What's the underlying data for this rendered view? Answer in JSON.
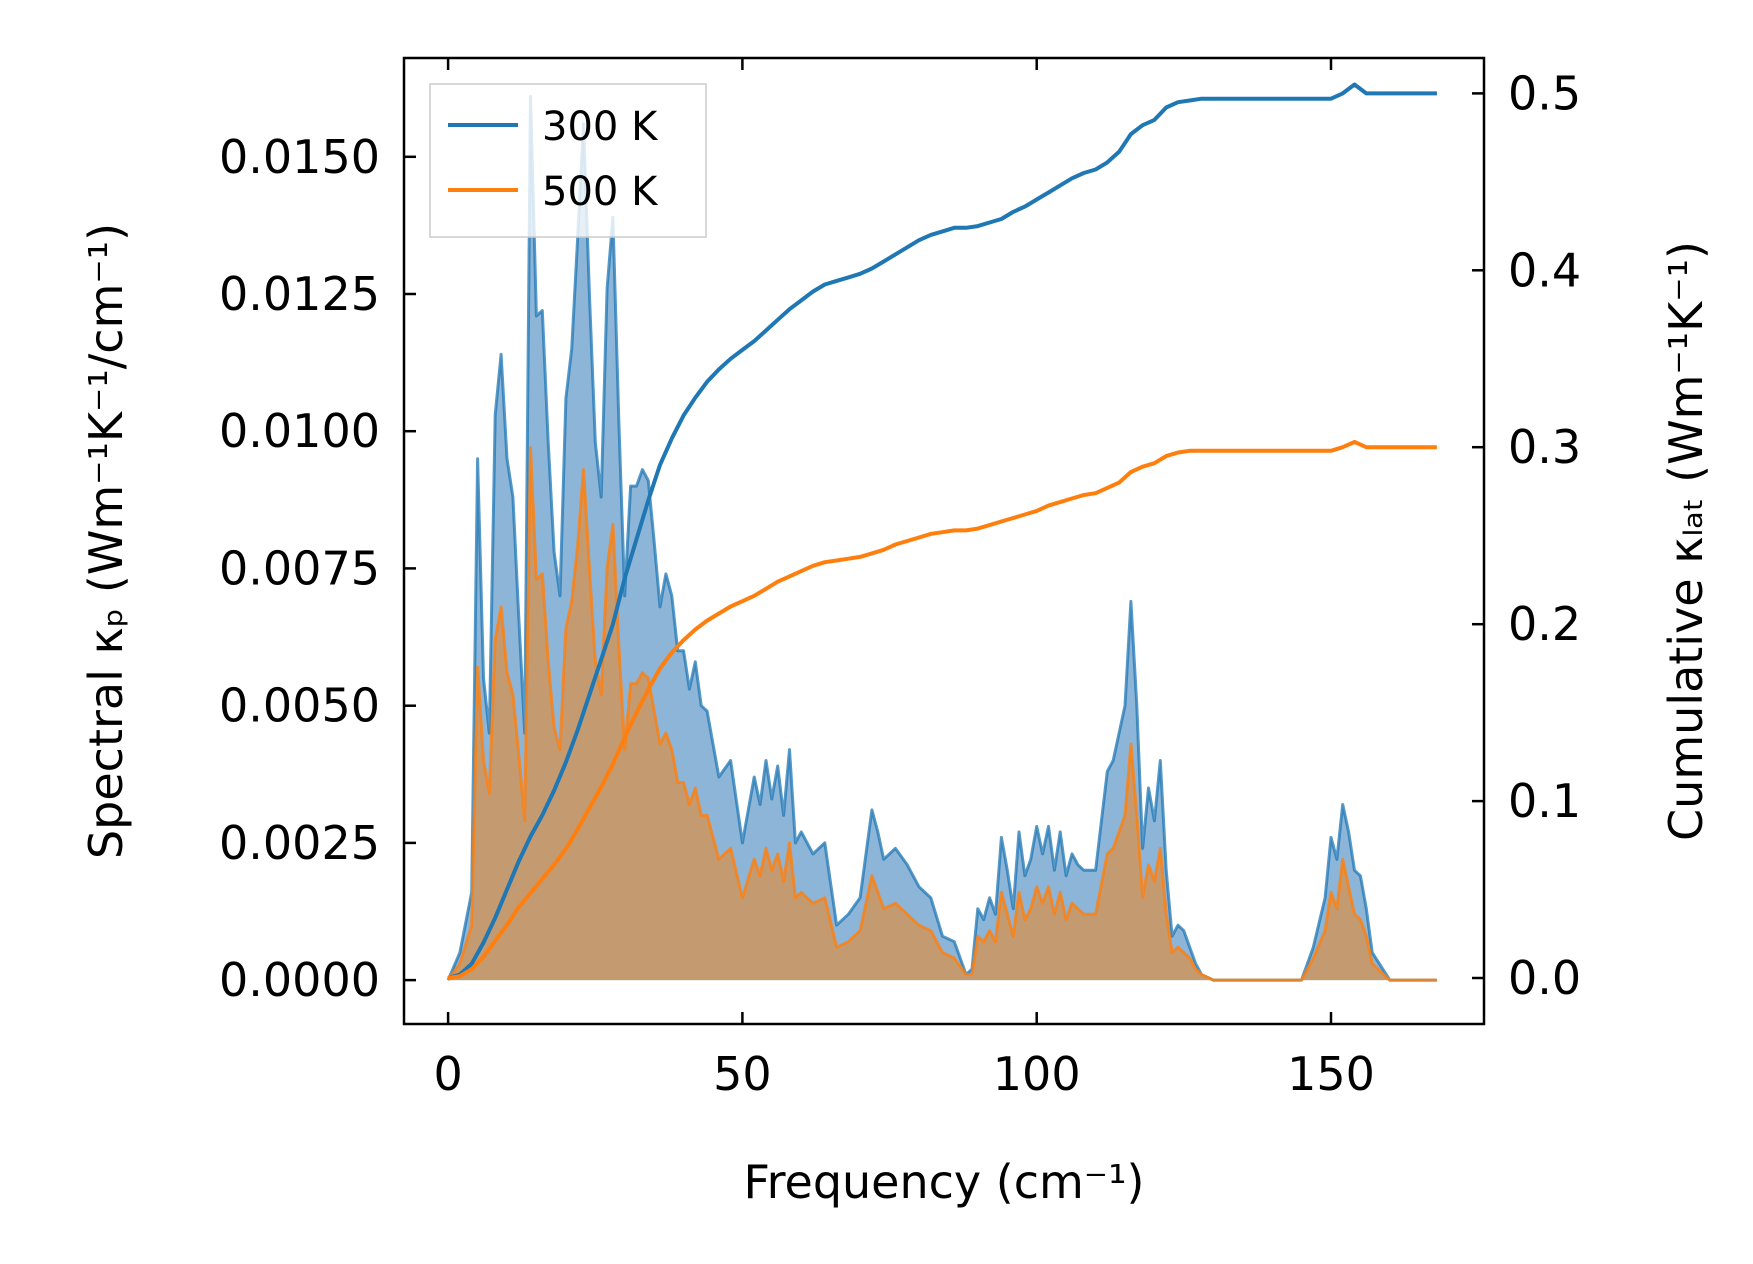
{
  "chart_data": {
    "type": "area",
    "xlabel": "Frequency (cm⁻¹)",
    "ylabel_left": "Spectral κₚ (Wm⁻¹K⁻¹/cm⁻¹)",
    "ylabel_right": "Cumulative κₗₐₜ (Wm⁻¹K⁻¹)",
    "xlim": [
      -7.5,
      176
    ],
    "ylim_left": [
      -0.0008,
      0.0168
    ],
    "ylim_right": [
      -0.026,
      0.52
    ],
    "x_ticks": [
      0,
      50,
      100,
      150
    ],
    "y_ticks_left": [
      0.0,
      0.0025,
      0.005,
      0.0075,
      0.01,
      0.0125,
      0.015
    ],
    "y_ticks_left_labels": [
      "0.0000",
      "0.0025",
      "0.0050",
      "0.0075",
      "0.0100",
      "0.0125",
      "0.0150"
    ],
    "y_ticks_right": [
      0.0,
      0.1,
      0.2,
      0.3,
      0.4,
      0.5
    ],
    "y_ticks_right_labels": [
      "0.0",
      "0.1",
      "0.2",
      "0.3",
      "0.4",
      "0.5"
    ],
    "legend": {
      "position": "top-left",
      "entries": [
        "300 K",
        "500 K"
      ]
    },
    "colors": {
      "s300": "#1f77b4",
      "s500": "#ff7f0e",
      "fill300": "#8db5d8",
      "fill500": "#c49a71"
    },
    "spectral": {
      "x": [
        0,
        2,
        4,
        5,
        6,
        7,
        8,
        9,
        10,
        11,
        12,
        13,
        14,
        15,
        16,
        17,
        18,
        19,
        20,
        21,
        22,
        23,
        24,
        25,
        26,
        27,
        28,
        29,
        30,
        31,
        32,
        33,
        34,
        35,
        36,
        37,
        38,
        39,
        40,
        41,
        42,
        43,
        44,
        46,
        48,
        50,
        52,
        53,
        54,
        55,
        56,
        57,
        58,
        59,
        60,
        62,
        64,
        66,
        68,
        70,
        72,
        73,
        74,
        76,
        78,
        80,
        82,
        84,
        86,
        88,
        89,
        90,
        91,
        92,
        93,
        94,
        95,
        96,
        97,
        98,
        99,
        100,
        101,
        102,
        103,
        104,
        105,
        106,
        107,
        108,
        110,
        112,
        113,
        114,
        115,
        116,
        117,
        118,
        119,
        120,
        121,
        122,
        123,
        124,
        125,
        126,
        127,
        128,
        130,
        135,
        140,
        145,
        147,
        149,
        150,
        151,
        152,
        153,
        154,
        155,
        156,
        157,
        160,
        168
      ],
      "series": [
        {
          "name": "300 K",
          "values": [
            0,
            0.0005,
            0.0016,
            0.0095,
            0.0055,
            0.0045,
            0.0103,
            0.0114,
            0.0095,
            0.0088,
            0.0066,
            0.0045,
            0.0161,
            0.0121,
            0.0122,
            0.0098,
            0.0078,
            0.007,
            0.0106,
            0.0115,
            0.0135,
            0.0156,
            0.0125,
            0.0098,
            0.0088,
            0.0126,
            0.0139,
            0.0102,
            0.007,
            0.009,
            0.009,
            0.0093,
            0.0091,
            0.008,
            0.0068,
            0.0074,
            0.007,
            0.006,
            0.006,
            0.0053,
            0.0058,
            0.005,
            0.0049,
            0.0037,
            0.004,
            0.0025,
            0.0037,
            0.0032,
            0.004,
            0.0033,
            0.0039,
            0.003,
            0.0042,
            0.0025,
            0.0027,
            0.0023,
            0.0025,
            0.001,
            0.0012,
            0.0015,
            0.0031,
            0.0027,
            0.0022,
            0.0024,
            0.0021,
            0.0017,
            0.0015,
            0.0008,
            0.0007,
            0.0001,
            0.0002,
            0.0013,
            0.0011,
            0.0015,
            0.0012,
            0.0026,
            0.002,
            0.0013,
            0.0027,
            0.0019,
            0.0022,
            0.0028,
            0.0023,
            0.0028,
            0.002,
            0.0027,
            0.0019,
            0.0023,
            0.0021,
            0.002,
            0.002,
            0.0038,
            0.004,
            0.0045,
            0.005,
            0.0069,
            0.005,
            0.0024,
            0.0035,
            0.0029,
            0.004,
            0.002,
            0.0008,
            0.001,
            0.0009,
            0.0006,
            0.0003,
            0.0001,
            0,
            0,
            0,
            0,
            0.0006,
            0.0015,
            0.0026,
            0.0022,
            0.0032,
            0.0027,
            0.002,
            0.0019,
            0.0013,
            0.0005,
            0,
            0
          ]
        },
        {
          "name": "500 K",
          "values": [
            0,
            0.0003,
            0.001,
            0.0057,
            0.004,
            0.0034,
            0.0062,
            0.0068,
            0.0056,
            0.0052,
            0.0041,
            0.0029,
            0.0097,
            0.0073,
            0.0074,
            0.0058,
            0.0046,
            0.0042,
            0.0064,
            0.0069,
            0.0079,
            0.0093,
            0.0075,
            0.0058,
            0.0052,
            0.0075,
            0.0083,
            0.0061,
            0.0042,
            0.0054,
            0.0054,
            0.0056,
            0.0055,
            0.0049,
            0.0043,
            0.0045,
            0.0042,
            0.0036,
            0.0036,
            0.0032,
            0.0035,
            0.003,
            0.003,
            0.0022,
            0.0024,
            0.0015,
            0.0022,
            0.0019,
            0.0024,
            0.002,
            0.0023,
            0.0018,
            0.0025,
            0.0015,
            0.0016,
            0.0014,
            0.0015,
            0.0006,
            0.0007,
            0.0009,
            0.0019,
            0.0016,
            0.0013,
            0.0014,
            0.0012,
            0.001,
            0.0009,
            0.0005,
            0.0004,
            0.0001,
            0.0001,
            0.0008,
            0.0007,
            0.0009,
            0.0007,
            0.0016,
            0.0012,
            0.0008,
            0.0016,
            0.0011,
            0.0013,
            0.0017,
            0.0014,
            0.0017,
            0.0012,
            0.0016,
            0.0011,
            0.0014,
            0.0013,
            0.0012,
            0.0012,
            0.0023,
            0.0024,
            0.0027,
            0.003,
            0.0043,
            0.003,
            0.0015,
            0.0021,
            0.0018,
            0.0024,
            0.0012,
            0.0005,
            0.0006,
            0.0005,
            0.0004,
            0.0002,
            0.0001,
            0,
            0,
            0,
            0,
            0.0004,
            0.0009,
            0.0016,
            0.0013,
            0.0022,
            0.0017,
            0.0012,
            0.0011,
            0.0008,
            0.0003,
            0,
            0
          ]
        }
      ]
    },
    "cumulative": {
      "x": [
        0,
        2,
        4,
        6,
        8,
        10,
        12,
        14,
        16,
        18,
        20,
        22,
        24,
        26,
        28,
        30,
        32,
        34,
        36,
        38,
        40,
        42,
        44,
        46,
        48,
        50,
        52,
        54,
        56,
        58,
        60,
        62,
        64,
        66,
        68,
        70,
        72,
        74,
        76,
        78,
        80,
        82,
        84,
        86,
        88,
        90,
        92,
        94,
        96,
        98,
        100,
        102,
        104,
        106,
        108,
        110,
        112,
        114,
        116,
        118,
        120,
        122,
        124,
        126,
        128,
        130,
        135,
        140,
        145,
        150,
        152,
        154,
        156,
        160,
        168
      ],
      "series": [
        {
          "name": "300 K",
          "values": [
            0,
            0.002,
            0.008,
            0.02,
            0.034,
            0.05,
            0.066,
            0.08,
            0.092,
            0.106,
            0.122,
            0.14,
            0.16,
            0.18,
            0.2,
            0.226,
            0.248,
            0.27,
            0.29,
            0.305,
            0.318,
            0.328,
            0.337,
            0.344,
            0.35,
            0.355,
            0.36,
            0.366,
            0.372,
            0.378,
            0.383,
            0.388,
            0.392,
            0.394,
            0.396,
            0.398,
            0.401,
            0.405,
            0.409,
            0.413,
            0.417,
            0.42,
            0.422,
            0.424,
            0.424,
            0.425,
            0.427,
            0.429,
            0.433,
            0.436,
            0.44,
            0.444,
            0.448,
            0.452,
            0.455,
            0.457,
            0.461,
            0.467,
            0.477,
            0.482,
            0.485,
            0.492,
            0.495,
            0.496,
            0.497,
            0.497,
            0.497,
            0.497,
            0.497,
            0.497,
            0.5,
            0.505,
            0.5,
            0.5,
            0.5
          ]
        },
        {
          "name": "500 K",
          "values": [
            0,
            0.001,
            0.005,
            0.012,
            0.021,
            0.03,
            0.04,
            0.048,
            0.056,
            0.064,
            0.073,
            0.084,
            0.096,
            0.108,
            0.121,
            0.136,
            0.15,
            0.163,
            0.175,
            0.184,
            0.191,
            0.197,
            0.202,
            0.206,
            0.21,
            0.213,
            0.216,
            0.22,
            0.224,
            0.227,
            0.23,
            0.233,
            0.235,
            0.236,
            0.237,
            0.238,
            0.24,
            0.242,
            0.245,
            0.247,
            0.249,
            0.251,
            0.252,
            0.253,
            0.253,
            0.254,
            0.256,
            0.258,
            0.26,
            0.262,
            0.264,
            0.267,
            0.269,
            0.271,
            0.273,
            0.274,
            0.277,
            0.28,
            0.286,
            0.289,
            0.291,
            0.295,
            0.297,
            0.298,
            0.298,
            0.298,
            0.298,
            0.298,
            0.298,
            0.298,
            0.3,
            0.303,
            0.3,
            0.3,
            0.3
          ]
        }
      ]
    }
  }
}
